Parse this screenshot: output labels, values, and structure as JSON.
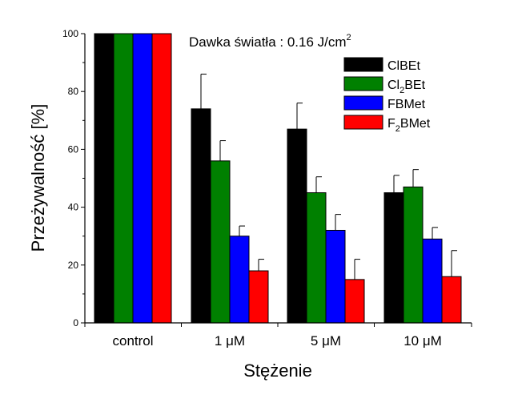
{
  "chart_data": {
    "type": "bar",
    "annotation": {
      "text": "Dawka światła : 0.16 J/cm",
      "superscript": "2"
    },
    "xlabel": "Stężenie",
    "ylabel": "Przeżywalność  [%]",
    "ylim": [
      0,
      100
    ],
    "yticks": [
      0,
      20,
      40,
      60,
      80,
      100
    ],
    "grid": false,
    "legend_position": "top-right",
    "categories": [
      "control",
      "1 μM",
      "5 μM",
      "10 μM"
    ],
    "series": [
      {
        "name": "ClBEt",
        "legend": {
          "main": "ClBEt",
          "sub": "",
          "tail": ""
        },
        "color": "#000000",
        "values": [
          100,
          74,
          67,
          45
        ],
        "errors": [
          0,
          12,
          9,
          6
        ]
      },
      {
        "name": "Cl2BEt",
        "legend": {
          "main": "Cl",
          "sub": "2",
          "tail": "BEt"
        },
        "color": "#008000",
        "values": [
          100,
          56,
          45,
          47
        ],
        "errors": [
          0,
          7,
          5.5,
          6
        ]
      },
      {
        "name": "FBMet",
        "legend": {
          "main": "FBMet",
          "sub": "",
          "tail": ""
        },
        "color": "#0000ff",
        "values": [
          100,
          30,
          32,
          29
        ],
        "errors": [
          0,
          3.5,
          5.5,
          4
        ]
      },
      {
        "name": "F2BMet",
        "legend": {
          "main": "F",
          "sub": "2",
          "tail": "BMet"
        },
        "color": "#ff0000",
        "values": [
          100,
          18,
          15,
          16
        ],
        "errors": [
          0,
          4,
          7,
          9
        ]
      }
    ]
  }
}
